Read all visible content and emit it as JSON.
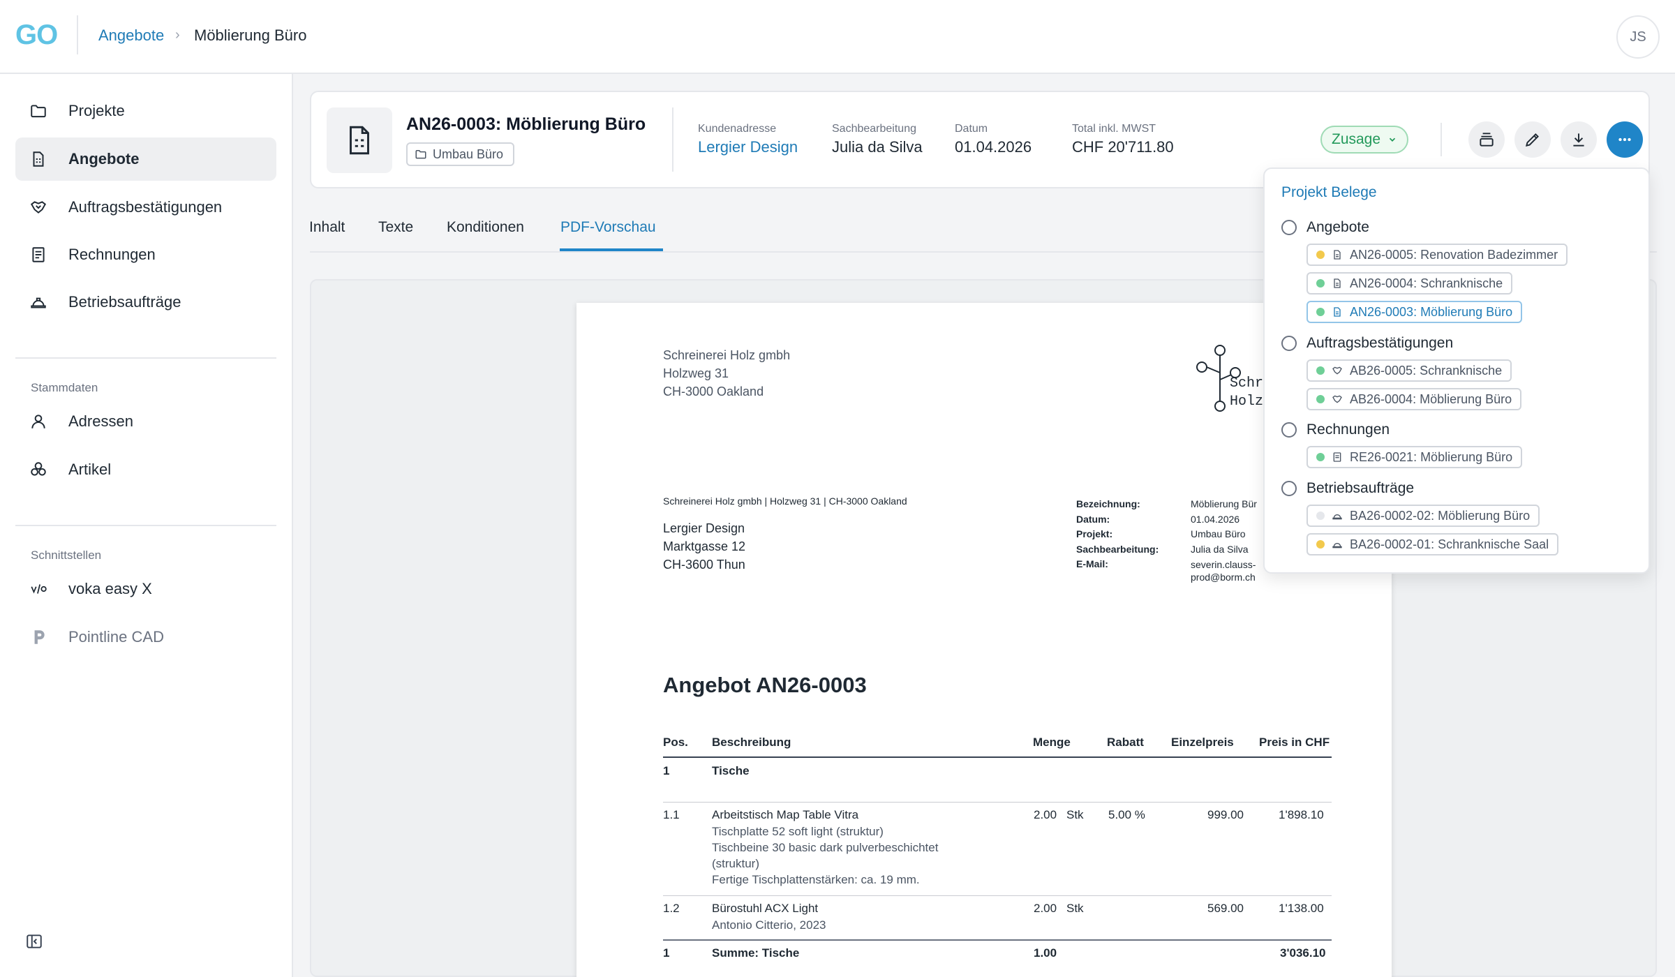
{
  "app": {
    "logo": "GO",
    "user_initials": "JS"
  },
  "breadcrumb": {
    "parent": "Angebote",
    "separator": "›",
    "current": "Möblierung Büro"
  },
  "sidebar": {
    "items": [
      {
        "label": "Projekte",
        "icon": "folder-icon"
      },
      {
        "label": "Angebote",
        "icon": "document-icon",
        "active": true
      },
      {
        "label": "Auftragsbestätigungen",
        "icon": "handshake-icon"
      },
      {
        "label": "Rechnungen",
        "icon": "invoice-icon"
      },
      {
        "label": "Betriebsaufträge",
        "icon": "hardhat-icon"
      }
    ],
    "section_master": "Stammdaten",
    "master_items": [
      {
        "label": "Adressen",
        "icon": "person-icon"
      },
      {
        "label": "Artikel",
        "icon": "cubes-icon"
      }
    ],
    "section_interfaces": "Schnittstellen",
    "interface_items": [
      {
        "label": "voka easy X",
        "icon": "voka-icon"
      },
      {
        "label": "Pointline CAD",
        "icon": "pointline-icon",
        "muted": true
      }
    ]
  },
  "header": {
    "title": "AN26-0003: Möblierung Büro",
    "project_chip": "Umbau Büro",
    "customer_label": "Kundenadresse",
    "customer_value": "Lergier Design",
    "clerk_label": "Sachbearbeitung",
    "clerk_value": "Julia da Silva",
    "date_label": "Datum",
    "date_value": "01.04.2026",
    "total_label": "Total inkl. MWST",
    "total_value": "CHF 20'711.80",
    "status": "Zusage"
  },
  "tabs": [
    "Inhalt",
    "Texte",
    "Konditionen",
    "PDF-Vorschau"
  ],
  "pdf": {
    "sender_lines": [
      "Schreinerei Holz gmbh",
      "Holzweg 31",
      "CH-3000 Oakland"
    ],
    "logo_text": [
      "Schr",
      "Holz"
    ],
    "sender_line": "Schreinerei Holz gmbh | Holzweg 31 | CH-3000 Oakland",
    "recipient_lines": [
      "Lergier Design",
      "Marktgasse 12",
      "CH-3600 Thun"
    ],
    "info_keys": [
      "Bezeichnung:",
      "Datum:",
      "Projekt:",
      "Sachbearbeitung:",
      "E-Mail:"
    ],
    "info_values": [
      "Möblierung Bür",
      "01.04.2026",
      "Umbau Büro",
      "Julia da Silva",
      "severin.clauss-",
      "prod@borm.ch"
    ],
    "heading": "Angebot AN26-0003",
    "columns": [
      "Pos.",
      "Beschreibung",
      "Menge",
      "Rabatt",
      "Einzelpreis",
      "Preis in CHF"
    ],
    "group_pos": "1",
    "group_title": "Tische",
    "rows": [
      {
        "pos": "1.1",
        "title": "Arbeitstisch Map Table Vitra",
        "details": [
          "Tischplatte 52 soft light (struktur)",
          "Tischbeine 30 basic dark pulverbeschichtet",
          "(struktur)",
          "Fertige Tischplattenstärken: ca. 19 mm."
        ],
        "qty": "2.00",
        "unit": "Stk",
        "discount": "5.00 %",
        "unit_price": "999.00",
        "total": "1'898.10"
      },
      {
        "pos": "1.2",
        "title": "Bürostuhl ACX Light",
        "details": [
          "Antonio Citterio, 2023"
        ],
        "qty": "2.00",
        "unit": "Stk",
        "discount": "",
        "unit_price": "569.00",
        "total": "1'138.00"
      }
    ],
    "sum_pos": "1",
    "sum_label": "Summe: Tische",
    "sum_qty": "1.00",
    "sum_total": "3'036.10"
  },
  "dropdown": {
    "title": "Projekt Belege",
    "groups": [
      {
        "label": "Angebote",
        "items": [
          {
            "label": "AN26-0005: Renovation Badezimmer",
            "status": "#f2c94c",
            "icon": "document-icon"
          },
          {
            "label": "AN26-0004: Schranknische",
            "status": "#6fcf97",
            "icon": "document-icon"
          },
          {
            "label": "AN26-0003: Möblierung Büro",
            "status": "#6fcf97",
            "icon": "document-icon",
            "current": true
          }
        ]
      },
      {
        "label": "Auftragsbestätigungen",
        "items": [
          {
            "label": "AB26-0005: Schranknische",
            "status": "#6fcf97",
            "icon": "handshake-icon"
          },
          {
            "label": "AB26-0004: Möblierung Büro",
            "status": "#6fcf97",
            "icon": "handshake-icon"
          }
        ]
      },
      {
        "label": "Rechnungen",
        "items": [
          {
            "label": "RE26-0021: Möblierung Büro",
            "status": "#6fcf97",
            "icon": "invoice-icon"
          }
        ]
      },
      {
        "label": "Betriebsaufträge",
        "items": [
          {
            "label": "BA26-0002-02: Möblierung Büro",
            "status": "#e5e7eb",
            "icon": "hardhat-icon"
          },
          {
            "label": "BA26-0002-01: Schranknische Saal",
            "status": "#f2c94c",
            "icon": "hardhat-icon"
          }
        ]
      }
    ]
  },
  "colors": {
    "accent": "#1f85c8",
    "link": "#1f7bb6",
    "status_green": "#22995a",
    "logo": "#5fc3e4"
  }
}
